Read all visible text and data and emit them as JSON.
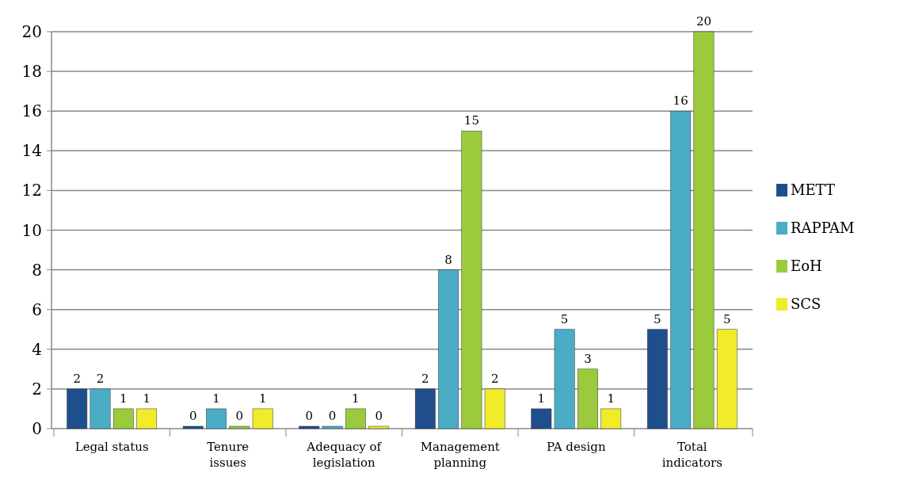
{
  "chart_data": {
    "type": "bar",
    "categories": [
      "Legal status",
      "Tenure issues",
      "Adequacy of legislation",
      "Management planning",
      "PA design",
      "Total indicators"
    ],
    "series": [
      {
        "name": "METT",
        "color": "#1f4e8c",
        "values": [
          2,
          0,
          0,
          2,
          1,
          5
        ]
      },
      {
        "name": "RAPPAM",
        "color": "#4bacc6",
        "values": [
          2,
          1,
          0,
          8,
          5,
          16
        ]
      },
      {
        "name": "EoH",
        "color": "#9bcb3c",
        "values": [
          1,
          0,
          1,
          15,
          3,
          20
        ]
      },
      {
        "name": "SCS",
        "color": "#f0ec2a",
        "values": [
          1,
          1,
          0,
          2,
          1,
          5
        ]
      }
    ],
    "ylim": [
      0,
      20
    ],
    "yticks": [
      0,
      2,
      4,
      6,
      8,
      10,
      12,
      14,
      16,
      18,
      20
    ],
    "grid": "y",
    "legend": "right",
    "data_labels": true
  }
}
